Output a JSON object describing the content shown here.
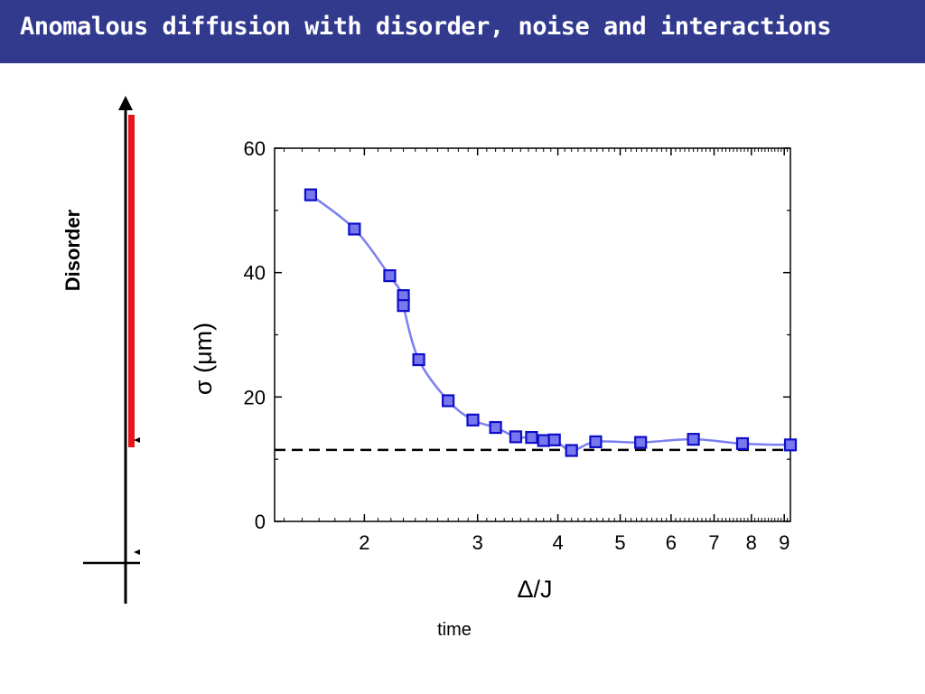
{
  "slide": {
    "title": "Anomalous diffusion with disorder, noise and interactions"
  },
  "side_axis": {
    "label": "Disorder",
    "bottom_label": "time"
  },
  "colors": {
    "title_bg": "#323a8e",
    "title_text": "#ffffff",
    "disorder_bar": "#e8141b",
    "series_line": "#7b7ff0",
    "marker_fill": "#7878ee",
    "marker_edge": "#0d0dc8",
    "reference_line": "#000000"
  },
  "chart_data": {
    "type": "scatter",
    "title": "",
    "xlabel": "Δ/J",
    "ylabel": "σ (μm)",
    "xscale": "log",
    "xlim": [
      1.45,
      9.2
    ],
    "ylim": [
      0,
      60
    ],
    "xticks": [
      2,
      3,
      4,
      5,
      6,
      7,
      8,
      9
    ],
    "yticks": [
      0,
      20,
      40,
      60
    ],
    "grid": false,
    "legend": "none",
    "reference_line": {
      "y": 11.5,
      "style": "dashed"
    },
    "series": [
      {
        "marker": "square",
        "line": "smooth",
        "points": [
          {
            "x": 1.65,
            "y": 52.5
          },
          {
            "x": 1.93,
            "y": 47.0
          },
          {
            "x": 2.19,
            "y": 39.5
          },
          {
            "x": 2.3,
            "y": 36.3
          },
          {
            "x": 2.3,
            "y": 34.7
          },
          {
            "x": 2.43,
            "y": 26.0
          },
          {
            "x": 2.7,
            "y": 19.4
          },
          {
            "x": 2.95,
            "y": 16.3
          },
          {
            "x": 3.2,
            "y": 15.1
          },
          {
            "x": 3.44,
            "y": 13.6
          },
          {
            "x": 3.64,
            "y": 13.5
          },
          {
            "x": 3.8,
            "y": 13.0
          },
          {
            "x": 3.95,
            "y": 13.1
          },
          {
            "x": 4.2,
            "y": 11.4
          },
          {
            "x": 4.58,
            "y": 12.8
          },
          {
            "x": 5.38,
            "y": 12.7
          },
          {
            "x": 6.5,
            "y": 13.2
          },
          {
            "x": 7.75,
            "y": 12.5
          },
          {
            "x": 9.2,
            "y": 12.3
          }
        ]
      }
    ]
  }
}
